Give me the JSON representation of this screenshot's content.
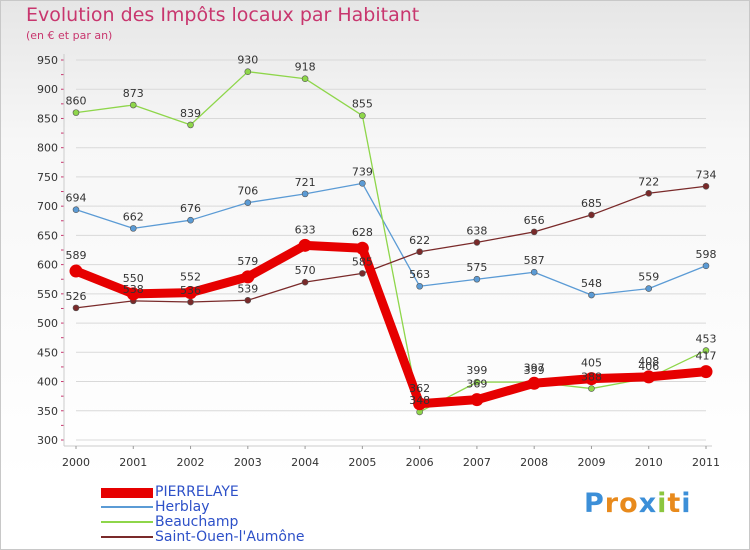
{
  "header": {
    "title": "Evolution des Impôts locaux par Habitant",
    "subtitle": "(en € et par an)"
  },
  "logo": {
    "letters": [
      "P",
      "r",
      "o",
      "x",
      "i",
      "t",
      "i"
    ],
    "colors": [
      "#3c8fd8",
      "#e88a1c",
      "#e88a1c",
      "#3c8fd8",
      "#8cc63f",
      "#e88a1c",
      "#3c8fd8"
    ]
  },
  "chart_data": {
    "type": "line",
    "title": "Evolution des Impôts locaux par Habitant",
    "subtitle": "(en € et par an)",
    "x": [
      "2000",
      "2001",
      "2002",
      "2003",
      "2004",
      "2005",
      "2006",
      "2007",
      "2008",
      "2009",
      "2010",
      "2011"
    ],
    "ylim": [
      300,
      950
    ],
    "yticks": [
      300,
      350,
      400,
      450,
      500,
      550,
      600,
      650,
      700,
      750,
      800,
      850,
      900,
      950
    ],
    "grid": true,
    "legend_position": "bottom-left",
    "series": [
      {
        "name": "PIERRELAYE",
        "color": "#e60000",
        "highlight": true,
        "values": [
          589,
          550,
          552,
          579,
          633,
          628,
          362,
          369,
          397,
          405,
          408,
          417
        ]
      },
      {
        "name": "Herblay",
        "color": "#5b9bd5",
        "highlight": false,
        "values": [
          694,
          662,
          676,
          706,
          721,
          739,
          563,
          575,
          587,
          548,
          559,
          598
        ]
      },
      {
        "name": "Beauchamp",
        "color": "#8ed64a",
        "highlight": false,
        "values": [
          860,
          873,
          839,
          930,
          918,
          855,
          348,
          399,
          399,
          388,
          406,
          453
        ]
      },
      {
        "name": "Saint-Ouen-l'Aumône",
        "color": "#7a2a2a",
        "highlight": false,
        "values": [
          526,
          538,
          536,
          539,
          570,
          585,
          622,
          638,
          656,
          685,
          722,
          734
        ]
      }
    ]
  }
}
